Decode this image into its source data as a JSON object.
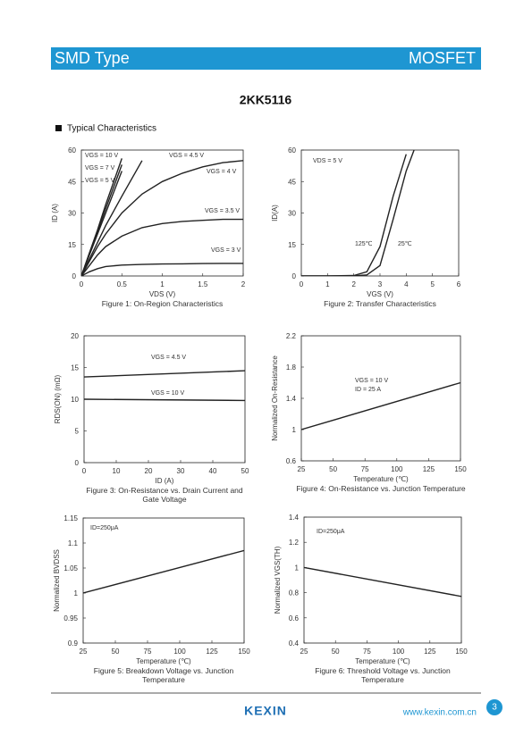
{
  "header": {
    "left": "SMD Type",
    "right": "MOSFET"
  },
  "part_number": "2KK5116",
  "section": "Typical Characteristics",
  "chart_data": [
    {
      "type": "line",
      "title": "Figure 1: On-Region Characteristics",
      "x_label": "VDS (V)",
      "y_label": "ID (A)",
      "color": "#222222",
      "x": [
        0,
        0.1,
        0.2,
        0.3,
        0.5,
        0.75,
        1,
        1.25,
        1.5,
        1.75,
        2
      ],
      "series": [
        {
          "name": "VGS = 10 V",
          "values": [
            0,
            11,
            22,
            34,
            56,
            null,
            null,
            null,
            null,
            null,
            null
          ]
        },
        {
          "name": "VGS = 7 V",
          "values": [
            0,
            10.5,
            21,
            32,
            53,
            null,
            null,
            null,
            null,
            null,
            null
          ]
        },
        {
          "name": "VGS = 5 V",
          "values": [
            0,
            10,
            20,
            30,
            50,
            null,
            null,
            null,
            null,
            null,
            null
          ]
        },
        {
          "name": "VGS = 4.5 V",
          "values": [
            0,
            8,
            16,
            24,
            38,
            55,
            null,
            null,
            null,
            null,
            null
          ]
        },
        {
          "name": "VGS = 4 V",
          "values": [
            0,
            7,
            14,
            20,
            30,
            39,
            45,
            49,
            52,
            54,
            55
          ]
        },
        {
          "name": "VGS = 3.5 V",
          "values": [
            0,
            5,
            10,
            14,
            19,
            23,
            25,
            26,
            26.5,
            27,
            27
          ]
        },
        {
          "name": "VGS = 3 V",
          "values": [
            0,
            2,
            3.5,
            4.5,
            5.2,
            5.5,
            5.7,
            5.8,
            5.9,
            6,
            6
          ]
        }
      ],
      "xlim": [
        0,
        2
      ],
      "xticks": [
        0,
        0.5,
        1,
        1.5,
        2
      ],
      "ylim": [
        0,
        60
      ],
      "yticks": [
        0,
        15,
        30,
        45,
        60
      ],
      "annotations": []
    },
    {
      "type": "line",
      "title": "Figure 2: Transfer Characteristics",
      "x_label": "VGS (V)",
      "y_label": "ID(A)",
      "color": "#222222",
      "x": [
        0,
        1,
        2,
        2.5,
        3,
        3.5,
        4,
        4.3
      ],
      "series": [
        {
          "name": "125℃",
          "values": [
            0,
            0,
            0.2,
            2,
            14,
            38,
            58,
            null
          ]
        },
        {
          "name": "25℃",
          "values": [
            0,
            0,
            0,
            0.5,
            5,
            27,
            50,
            60
          ]
        }
      ],
      "xlim": [
        0,
        6
      ],
      "xticks": [
        0,
        1,
        2,
        3,
        4,
        5,
        6
      ],
      "ylim": [
        0,
        60
      ],
      "yticks": [
        0,
        15,
        30,
        45,
        60
      ],
      "annotations": [
        "VDS = 5 V"
      ]
    },
    {
      "type": "line",
      "title": "Figure 3: On-Resistance vs. Drain Current and Gate Voltage",
      "x_label": "ID (A)",
      "y_label": "RDS(ON) (mΩ)",
      "color": "#222222",
      "x": [
        0,
        50
      ],
      "series": [
        {
          "name": "VGS = 4.5 V",
          "values": [
            13.5,
            14.5
          ]
        },
        {
          "name": "VGS = 10 V",
          "values": [
            10,
            9.8
          ]
        }
      ],
      "xlim": [
        0,
        50
      ],
      "xticks": [
        0,
        10,
        20,
        30,
        40,
        50
      ],
      "ylim": [
        0,
        20
      ],
      "yticks": [
        0,
        5,
        10,
        15,
        20
      ],
      "annotations": []
    },
    {
      "type": "line",
      "title": "Figure 4: On-Resistance vs. Junction Temperature",
      "x_label": "Temperature (℃)",
      "y_label": "Normalized On-Resistance",
      "color": "#222222",
      "x": [
        25,
        150
      ],
      "values": [
        1.0,
        1.6
      ],
      "xlim": [
        25,
        150
      ],
      "xticks": [
        25,
        50,
        75,
        100,
        125,
        150
      ],
      "ylim": [
        0.6,
        2.2
      ],
      "yticks": [
        0.6,
        1,
        1.4,
        1.8,
        2.2
      ],
      "annotations": [
        "VGS = 10 V",
        "ID = 25 A"
      ]
    },
    {
      "type": "line",
      "title": "Figure 5: Breakdown Voltage vs. Junction Temperature",
      "x_label": "Temperature (℃)",
      "y_label": "Normalized BVDSS",
      "color": "#222222",
      "x": [
        25,
        150
      ],
      "values": [
        1.0,
        1.085
      ],
      "xlim": [
        25,
        150
      ],
      "xticks": [
        25,
        50,
        75,
        100,
        125,
        150
      ],
      "ylim": [
        0.9,
        1.15
      ],
      "yticks": [
        0.9,
        0.95,
        1,
        1.05,
        1.1,
        1.15
      ],
      "annotations": [
        "ID=250μA"
      ]
    },
    {
      "type": "line",
      "title": "Figure 6: Threshold Voltage vs. Junction Temperature",
      "x_label": "Temperature (℃)",
      "y_label": "Normalized VGS(TH)",
      "color": "#222222",
      "x": [
        25,
        150
      ],
      "values": [
        1.0,
        0.77
      ],
      "xlim": [
        25,
        150
      ],
      "xticks": [
        25,
        50,
        75,
        100,
        125,
        150
      ],
      "ylim": [
        0.4,
        1.4
      ],
      "yticks": [
        0.4,
        0.6,
        0.8,
        1,
        1.2,
        1.4
      ],
      "annotations": [
        "ID=250μA"
      ]
    }
  ],
  "footer": {
    "logo": "KEXIN",
    "url": "www.kexin.com.cn",
    "page": "3"
  }
}
